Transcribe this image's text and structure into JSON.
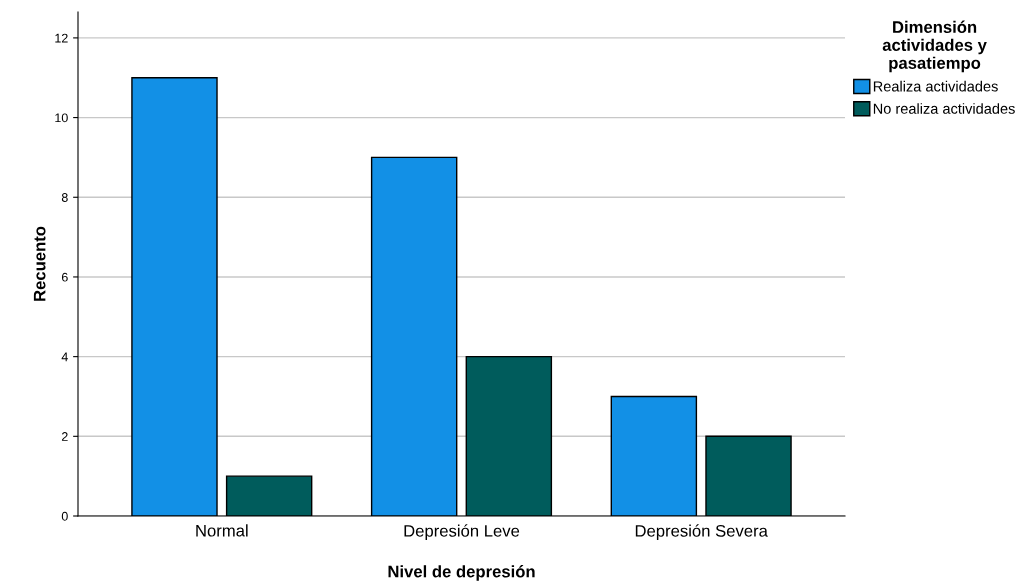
{
  "chart_data": {
    "type": "bar",
    "xlabel": "Nivel de depresión",
    "ylabel": "Recuento",
    "legend_title": "Dimensión\nactividades y\npasatiempo",
    "categories": [
      "Normal",
      "Depresión Leve",
      "Depresión Severa"
    ],
    "series": [
      {
        "name": "Realiza actividades",
        "color": "#1290e6",
        "values": [
          11,
          9,
          3
        ]
      },
      {
        "name": "No realiza actividades",
        "color": "#005c5c",
        "values": [
          1,
          4,
          2
        ]
      }
    ],
    "ylim": [
      0,
      12.65
    ],
    "yticks": [
      0,
      2,
      4,
      6,
      8,
      10,
      12
    ],
    "grid": "y",
    "legend": "top right"
  }
}
